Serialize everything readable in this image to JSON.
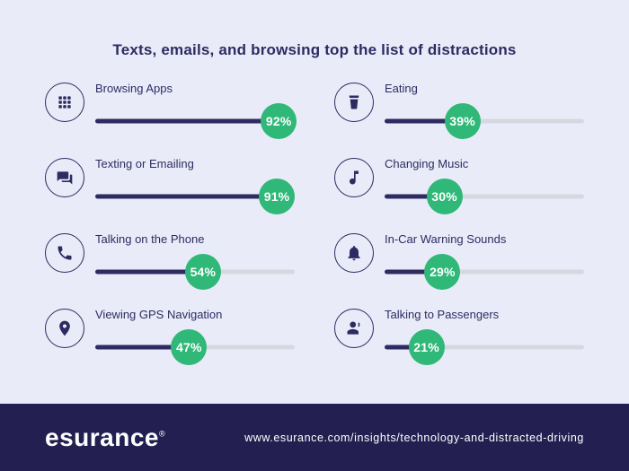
{
  "title": "Texts, emails, and browsing top the list of distractions",
  "items": [
    {
      "label": "Browsing Apps",
      "pct": "92%",
      "icon": "apps-grid-icon"
    },
    {
      "label": "Texting or Emailing",
      "pct": "91%",
      "icon": "chat-bubbles-icon"
    },
    {
      "label": "Talking on the Phone",
      "pct": "54%",
      "icon": "phone-icon"
    },
    {
      "label": "Viewing GPS Navigation",
      "pct": "47%",
      "icon": "map-pin-icon"
    },
    {
      "label": "Eating",
      "pct": "39%",
      "icon": "drink-cup-icon"
    },
    {
      "label": "Changing Music",
      "pct": "30%",
      "icon": "music-note-icon"
    },
    {
      "label": "In-Car Warning Sounds",
      "pct": "29%",
      "icon": "bell-icon"
    },
    {
      "label": "Talking to Passengers",
      "pct": "21%",
      "icon": "talking-person-icon"
    }
  ],
  "chart_data": {
    "type": "bar",
    "orientation": "horizontal",
    "layout": "two-column-icon-list",
    "title": "Texts, emails, and browsing top the list of distractions",
    "categories": [
      "Browsing Apps",
      "Texting or Emailing",
      "Talking on the Phone",
      "Viewing GPS Navigation",
      "Eating",
      "Changing Music",
      "In-Car Warning Sounds",
      "Talking to Passengers"
    ],
    "values": [
      92,
      91,
      54,
      47,
      39,
      30,
      29,
      21
    ],
    "value_format": "percent",
    "xlim": [
      0,
      100
    ],
    "grid": false,
    "legend": false
  },
  "footer": {
    "logo": "esurance",
    "registered_mark": "®",
    "url": "www.esurance.com/insights/technology-and-distracted-driving"
  },
  "colors": {
    "background": "#e9ecf8",
    "navy": "#2e2a62",
    "green": "#30b878",
    "track": "#d7d7e0",
    "footer_background": "#232051",
    "text_on_dark": "#ffffff"
  }
}
